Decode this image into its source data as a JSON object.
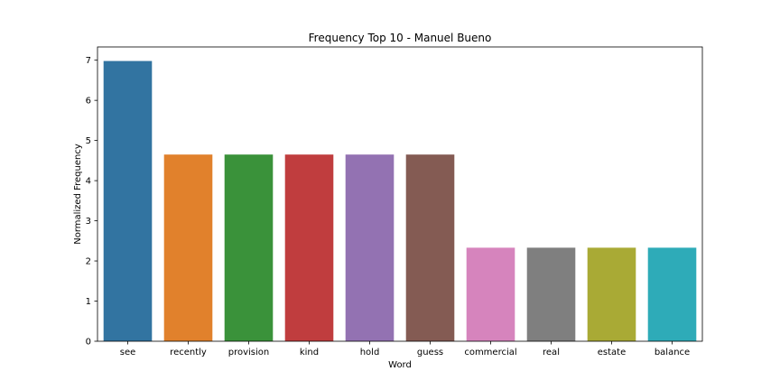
{
  "chart_data": {
    "type": "bar",
    "title": "Frequency Top 10 - Manuel Bueno",
    "xlabel": "Word",
    "ylabel": "Normalized Frequency",
    "categories": [
      "see",
      "recently",
      "provision",
      "kind",
      "hold",
      "guess",
      "commercial",
      "real",
      "estate",
      "balance"
    ],
    "values": [
      6.98,
      4.65,
      4.65,
      4.65,
      4.65,
      4.65,
      2.33,
      2.33,
      2.33,
      2.33
    ],
    "colors": [
      "#3274a1",
      "#e1812c",
      "#3a923a",
      "#c03d3e",
      "#9372b2",
      "#845b53",
      "#d684bd",
      "#7f7f7f",
      "#a9aa35",
      "#2eabb8"
    ],
    "ylim": [
      0,
      7.33
    ],
    "yticks": [
      0,
      1,
      2,
      3,
      4,
      5,
      6,
      7
    ],
    "grid": false,
    "legend": "none"
  }
}
